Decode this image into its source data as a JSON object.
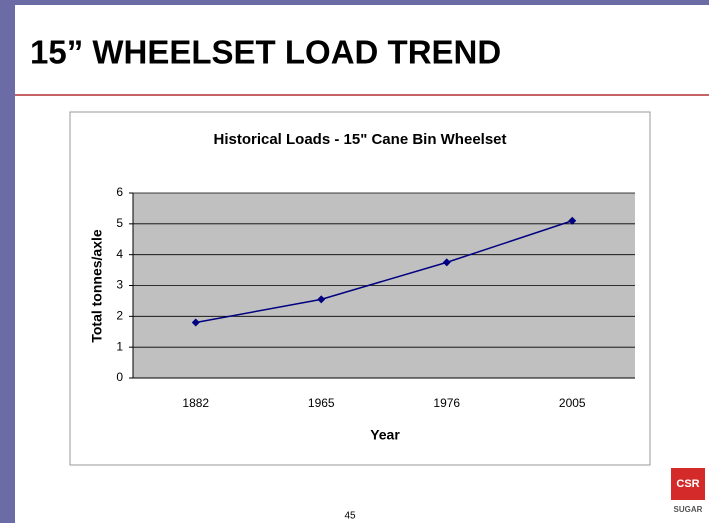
{
  "slide_title": "15” WHEELSET LOAD TREND",
  "page_number": "45",
  "logo": {
    "mark": "CSR",
    "name": "SUGAR"
  },
  "chart_data": {
    "type": "line",
    "title": "Historical Loads - 15\" Cane Bin Wheelset",
    "x_label": "Year",
    "y_label": "Total tonnes/axle",
    "categories": [
      "1882",
      "1965",
      "1976",
      "2005"
    ],
    "values": [
      1.8,
      2.55,
      3.75,
      5.1
    ],
    "color": "#000080",
    "ylim": [
      0,
      6
    ],
    "yticks": [
      0,
      1,
      2,
      3,
      4,
      5,
      6
    ],
    "grid": true
  }
}
